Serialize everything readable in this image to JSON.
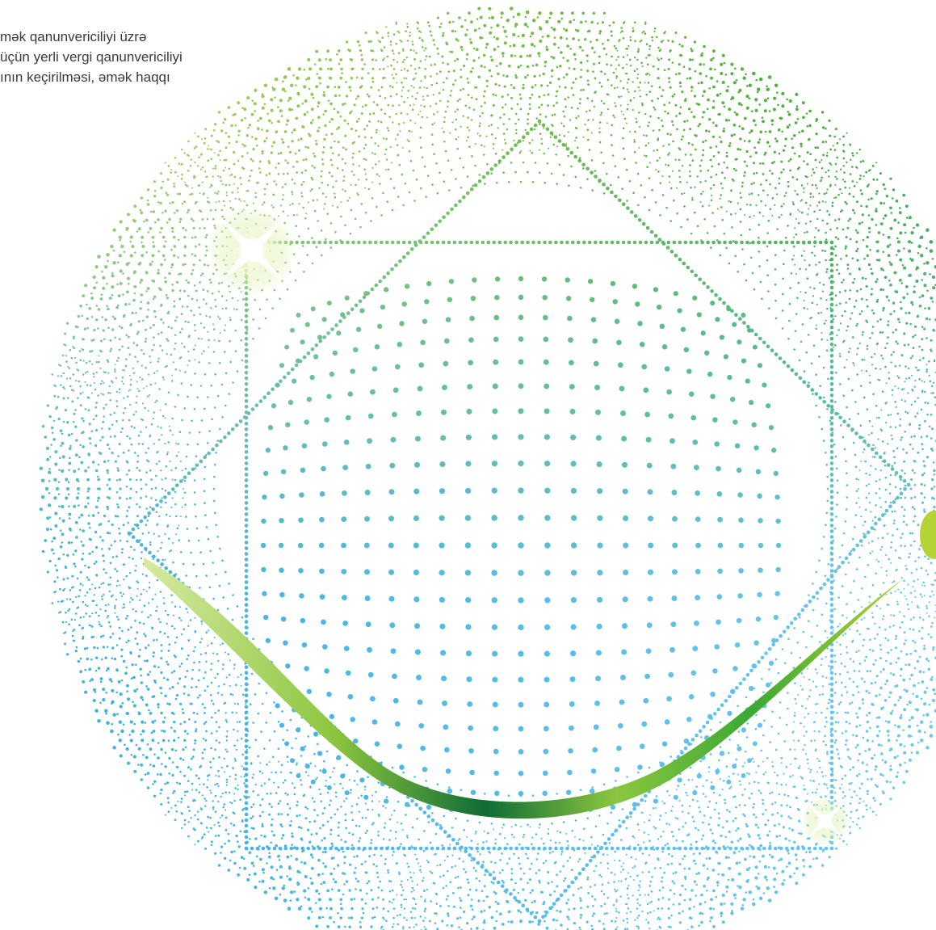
{
  "text_lines": [
    "mək qanunvericiliyi üzrə",
    "üçün yerli vergi qanunvericiliyi",
    "ının keçirilməsi, əmək haqqı"
  ],
  "colors": {
    "green": "#3aa935",
    "light_green": "#b9d86a",
    "blue": "#3aaee0",
    "light_blue": "#7fd0f0",
    "dark_green": "#0f6b35",
    "lime": "#b5d334"
  },
  "decoration": {
    "ribbon": "swoosh-ribbon",
    "sparkles": [
      "sparkle-icon",
      "sparkle-icon"
    ]
  }
}
